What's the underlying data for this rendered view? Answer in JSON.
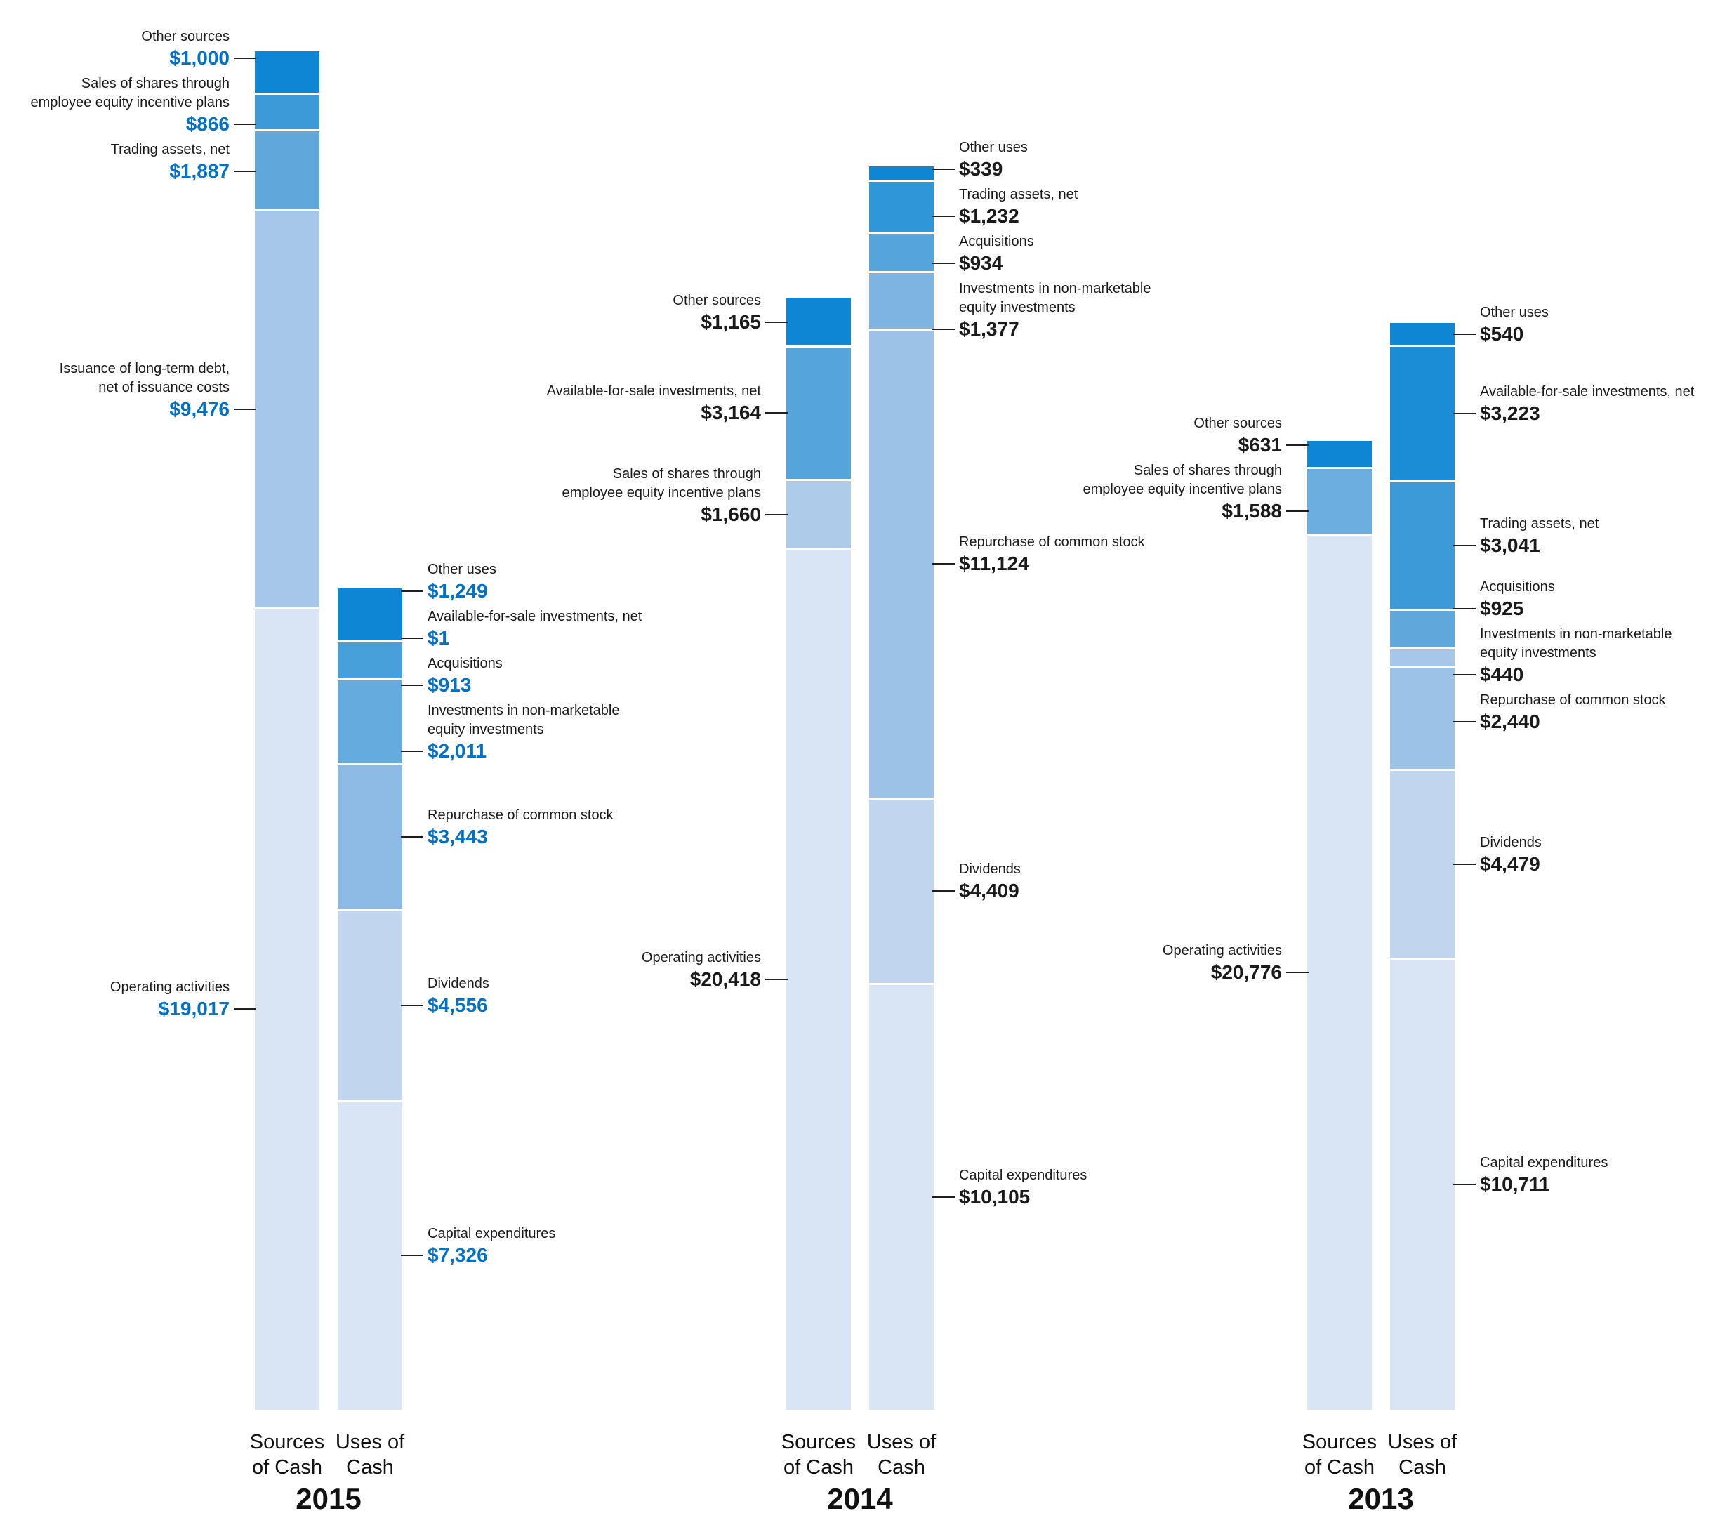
{
  "chart_data": {
    "type": "stacked-bar",
    "value_prefix": "$",
    "years": [
      {
        "year": "2015",
        "value_color": "#0071c5",
        "bars": [
          {
            "id": "sources",
            "axis_label_lines": [
              "Sources",
              "of Cash"
            ],
            "label_side": "left",
            "segments": [
              {
                "name_lines": [
                  "Other sources"
                ],
                "value": 1000,
                "value_label": "$1,000",
                "color": "#0f86d4"
              },
              {
                "name_lines": [
                  "Sales of shares through",
                  "employee equity incentive plans"
                ],
                "value": 866,
                "value_label": "$866",
                "color": "#3c9ad8"
              },
              {
                "name_lines": [
                  "Trading assets, net"
                ],
                "value": 1887,
                "value_label": "$1,887",
                "color": "#5fa8dc"
              },
              {
                "name_lines": [
                  "Issuance of long-term debt,",
                  "net of issuance costs"
                ],
                "value": 9476,
                "value_label": "$9,476",
                "color": "#a6c7e9"
              },
              {
                "name_lines": [
                  "Operating activities"
                ],
                "value": 19017,
                "value_label": "$19,017",
                "color": "#d9e4f4"
              }
            ]
          },
          {
            "id": "uses",
            "axis_label_lines": [
              "Uses of",
              "Cash"
            ],
            "label_side": "right",
            "segments": [
              {
                "name_lines": [
                  "Other uses"
                ],
                "value": 1249,
                "value_label": "$1,249",
                "color": "#0f86d4"
              },
              {
                "name_lines": [
                  "Available-for-sale investments, net"
                ],
                "value": 1,
                "value_label": "$1",
                "color": "#2a91d6"
              },
              {
                "name_lines": [
                  "Acquisitions"
                ],
                "value": 913,
                "value_label": "$913",
                "color": "#47a0da"
              },
              {
                "name_lines": [
                  "Investments in non-marketable",
                  "equity investments"
                ],
                "value": 2011,
                "value_label": "$2,011",
                "color": "#65abde"
              },
              {
                "name_lines": [
                  "Repurchase of common stock"
                ],
                "value": 3443,
                "value_label": "$3,443",
                "color": "#8cbae4"
              },
              {
                "name_lines": [
                  "Dividends"
                ],
                "value": 4556,
                "value_label": "$4,556",
                "color": "#c1d5ee"
              },
              {
                "name_lines": [
                  "Capital expenditures"
                ],
                "value": 7326,
                "value_label": "$7,326",
                "color": "#d9e4f4"
              }
            ]
          }
        ]
      },
      {
        "year": "2014",
        "value_color": "#1a1a1a",
        "bars": [
          {
            "id": "sources",
            "axis_label_lines": [
              "Sources",
              "of Cash"
            ],
            "label_side": "left",
            "segments": [
              {
                "name_lines": [
                  "Other sources"
                ],
                "value": 1165,
                "value_label": "$1,165",
                "color": "#0f86d4"
              },
              {
                "name_lines": [
                  "Available-for-sale investments, net"
                ],
                "value": 3164,
                "value_label": "$3,164",
                "color": "#55a5db"
              },
              {
                "name_lines": [
                  "Sales of shares through",
                  "employee equity incentive plans"
                ],
                "value": 1660,
                "value_label": "$1,660",
                "color": "#aecbea"
              },
              {
                "name_lines": [
                  "Operating activities"
                ],
                "value": 20418,
                "value_label": "$20,418",
                "color": "#d9e4f4"
              }
            ]
          },
          {
            "id": "uses",
            "axis_label_lines": [
              "Uses of",
              "Cash"
            ],
            "label_side": "right",
            "segments": [
              {
                "name_lines": [
                  "Other uses"
                ],
                "value": 339,
                "value_label": "$339",
                "color": "#0f86d4"
              },
              {
                "name_lines": [
                  "Trading assets, net"
                ],
                "value": 1232,
                "value_label": "$1,232",
                "color": "#2f97d8"
              },
              {
                "name_lines": [
                  "Acquisitions"
                ],
                "value": 934,
                "value_label": "$934",
                "color": "#55a5db"
              },
              {
                "name_lines": [
                  "Investments in non-marketable",
                  "equity investments"
                ],
                "value": 1377,
                "value_label": "$1,377",
                "color": "#7db4e1"
              },
              {
                "name_lines": [
                  "Repurchase of common stock"
                ],
                "value": 11124,
                "value_label": "$11,124",
                "color": "#9cc2e7"
              },
              {
                "name_lines": [
                  "Dividends"
                ],
                "value": 4409,
                "value_label": "$4,409",
                "color": "#c1d5ee"
              },
              {
                "name_lines": [
                  "Capital expenditures"
                ],
                "value": 10105,
                "value_label": "$10,105",
                "color": "#d9e4f4"
              }
            ]
          }
        ]
      },
      {
        "year": "2013",
        "value_color": "#1a1a1a",
        "bars": [
          {
            "id": "sources",
            "axis_label_lines": [
              "Sources",
              "of Cash"
            ],
            "label_side": "left",
            "segments": [
              {
                "name_lines": [
                  "Other sources"
                ],
                "value": 631,
                "value_label": "$631",
                "color": "#0f86d4"
              },
              {
                "name_lines": [
                  "Sales of shares through",
                  "employee equity incentive plans"
                ],
                "value": 1588,
                "value_label": "$1,588",
                "color": "#6aadde"
              },
              {
                "name_lines": [
                  "Operating activities"
                ],
                "value": 20776,
                "value_label": "$20,776",
                "color": "#d9e4f4"
              }
            ]
          },
          {
            "id": "uses",
            "axis_label_lines": [
              "Uses of",
              "Cash"
            ],
            "label_side": "right",
            "segments": [
              {
                "name_lines": [
                  "Other uses"
                ],
                "value": 540,
                "value_label": "$540",
                "color": "#0f86d4"
              },
              {
                "name_lines": [
                  "Available-for-sale investments, net"
                ],
                "value": 3223,
                "value_label": "$3,223",
                "color": "#1b8cd6"
              },
              {
                "name_lines": [
                  "Trading assets, net"
                ],
                "value": 3041,
                "value_label": "$3,041",
                "color": "#3c9ad8"
              },
              {
                "name_lines": [
                  "Acquisitions"
                ],
                "value": 925,
                "value_label": "$925",
                "color": "#5fa8dc"
              },
              {
                "name_lines": [
                  "Investments in non-marketable",
                  "equity investments"
                ],
                "value": 440,
                "value_label": "$440",
                "color": "#a6c7e9"
              },
              {
                "name_lines": [
                  "Repurchase of common stock"
                ],
                "value": 2440,
                "value_label": "$2,440",
                "color": "#9cc2e7"
              },
              {
                "name_lines": [
                  "Dividends"
                ],
                "value": 4479,
                "value_label": "$4,479",
                "color": "#c1d5ee"
              },
              {
                "name_lines": [
                  "Capital expenditures"
                ],
                "value": 10711,
                "value_label": "$10,711",
                "color": "#d9e4f4"
              }
            ]
          }
        ]
      }
    ]
  },
  "colors": {
    "leader_line": "#231f20",
    "separator": "#ffffff",
    "text": "#1a1a1a"
  }
}
